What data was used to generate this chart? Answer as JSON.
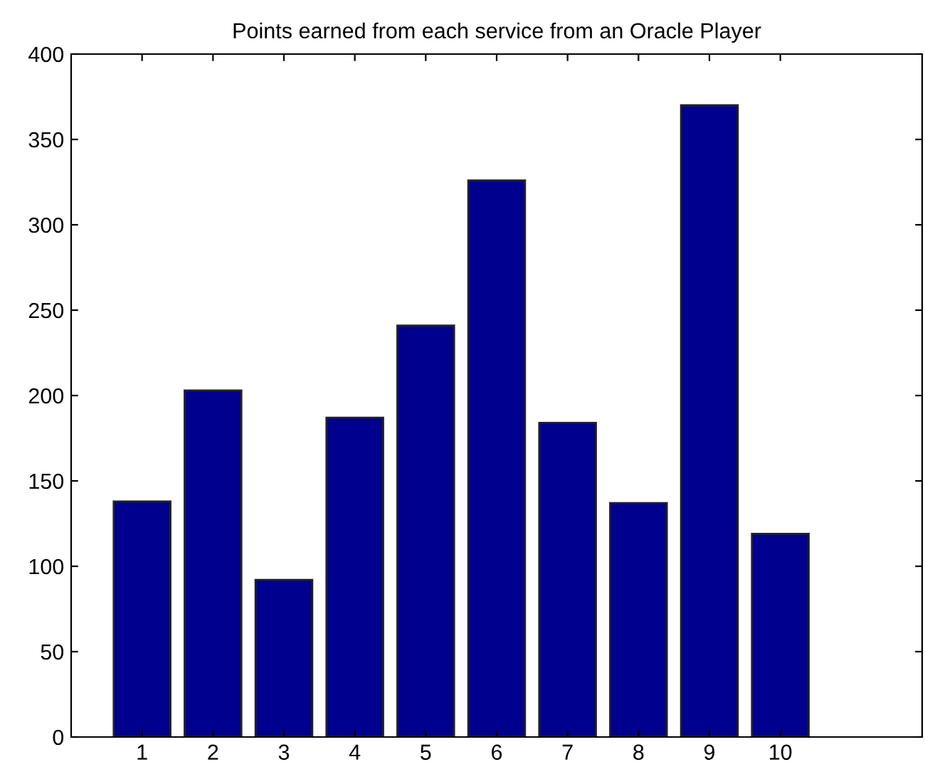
{
  "chart_data": {
    "type": "bar",
    "title": "Points earned from each service from an Oracle Player",
    "x": [
      1,
      2,
      3,
      4,
      5,
      6,
      7,
      8,
      9,
      10
    ],
    "values": [
      138,
      203,
      92,
      187,
      241,
      326,
      184,
      137,
      370,
      119
    ],
    "color": "#00008f",
    "xlim": [
      0,
      12
    ],
    "xticks": [
      1,
      2,
      3,
      4,
      5,
      6,
      7,
      8,
      9,
      10
    ],
    "ylim": [
      0,
      400
    ],
    "yticks": [
      0,
      50,
      100,
      150,
      200,
      250,
      300,
      350,
      400
    ],
    "grid": false,
    "legend": false
  }
}
